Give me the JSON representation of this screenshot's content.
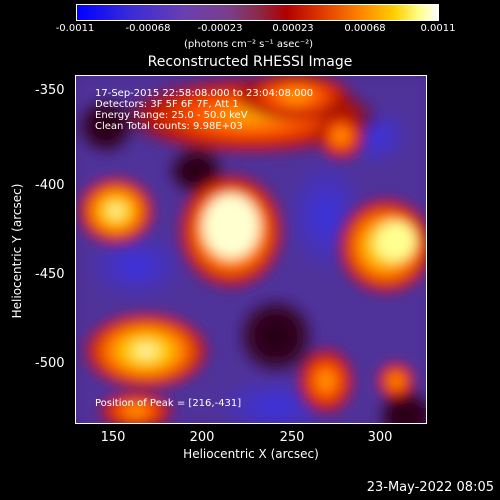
{
  "colorbar": {
    "ticks": [
      "-0.0011",
      "-0.00068",
      "-0.00023",
      "0.00023",
      "0.00068",
      "0.0011"
    ],
    "units": "(photons cm⁻² s⁻¹ asec⁻²)"
  },
  "title": "Reconstructed RHESSI Image",
  "info": {
    "time_range": "17-Sep-2015 22:58:08.000 to 23:04:08.000",
    "detectors": "Detectors: 3F 5F 6F 7F, Att 1",
    "energy_range": "Energy Range: 25.0 - 50.0 keV",
    "algorithm_counts": "Clean    Total counts: 9.98E+03",
    "peak": "Position of Peak = [216,-431]"
  },
  "axes": {
    "xlabel": "Heliocentric X (arcsec)",
    "ylabel": "Heliocentric Y (arcsec)",
    "xticks": [
      "150",
      "200",
      "250",
      "300"
    ],
    "yticks": [
      "-350",
      "-400",
      "-450",
      "-500"
    ]
  },
  "footer_date": "23-May-2022 08:05"
}
